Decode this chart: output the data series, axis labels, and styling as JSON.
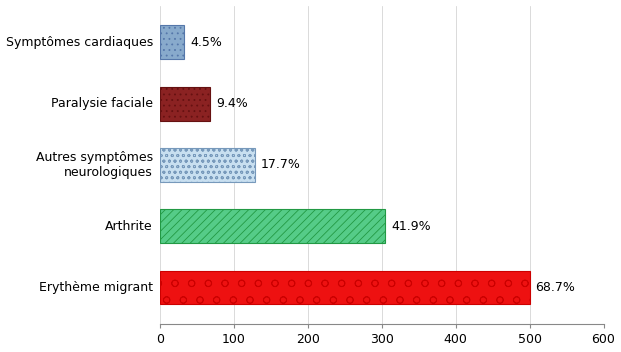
{
  "categories": [
    "Erythème migrant",
    "Arthrite",
    "Autres symptômes\nneurologiques",
    "Paralysie faciale",
    "Symptômes cardiaques"
  ],
  "values": [
    500,
    305,
    129,
    68,
    33
  ],
  "percentages": [
    "68.7%",
    "41.9%",
    "17.7%",
    "9.4%",
    "4.5%"
  ],
  "face_colors": [
    "#ee1111",
    "#55cc88",
    "#c8dff0",
    "#8b2222",
    "#88aacc"
  ],
  "hatch_patterns": [
    "o ",
    "////",
    "ooo",
    "...",
    "..."
  ],
  "hatch_colors": [
    "white",
    "#229944",
    "#88aacc",
    "#661111",
    "#6688aa"
  ],
  "edge_colors": [
    "#cc0000",
    "#229944",
    "#7799bb",
    "#661111",
    "#5577aa"
  ],
  "xlim": [
    0,
    600
  ],
  "xticks": [
    0,
    100,
    200,
    300,
    400,
    500,
    600
  ],
  "bar_height": 0.55,
  "label_fontsize": 9,
  "tick_fontsize": 9,
  "pct_fontsize": 9,
  "bg_color": "#ffffff"
}
